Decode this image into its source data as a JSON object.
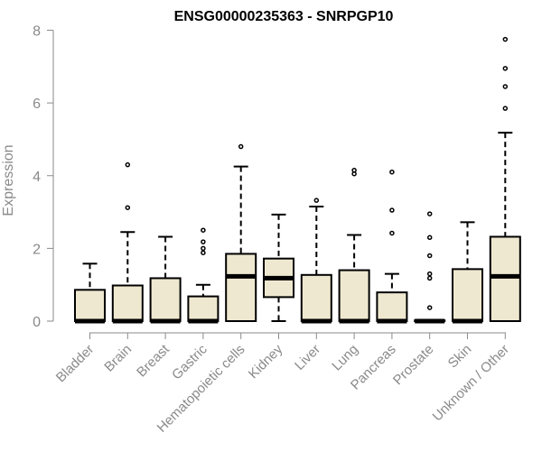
{
  "chart_data": {
    "type": "box",
    "title": "ENSG00000235363 - SNRPGP10",
    "xlabel": "",
    "ylabel": "Expression",
    "ylim": [
      0,
      8
    ],
    "yticks": [
      0,
      2,
      4,
      6,
      8
    ],
    "grid": false,
    "box_fill": "#efe8d0",
    "outline_color": "#000000",
    "axis_color": "#8a8a8a",
    "categories": [
      "Bladder",
      "Brain",
      "Breast",
      "Gastric",
      "Hematopoietic cells",
      "Kidney",
      "Liver",
      "Lung",
      "Pancreas",
      "Prostate",
      "Skin",
      "Unknown / Other"
    ],
    "boxes": [
      {
        "category": "Bladder",
        "min": 0,
        "q1": 0,
        "median": 0,
        "q3": 0.86,
        "max": 1.58,
        "outliers": []
      },
      {
        "category": "Brain",
        "min": 0,
        "q1": 0,
        "median": 0,
        "q3": 0.98,
        "max": 2.45,
        "outliers": [
          3.12,
          4.3
        ]
      },
      {
        "category": "Breast",
        "min": 0,
        "q1": 0,
        "median": 0,
        "q3": 1.18,
        "max": 2.32,
        "outliers": []
      },
      {
        "category": "Gastric",
        "min": 0,
        "q1": 0,
        "median": 0,
        "q3": 0.68,
        "max": 1.0,
        "outliers": [
          1.88,
          2.0,
          2.18,
          2.5
        ]
      },
      {
        "category": "Hematopoietic cells",
        "min": 0,
        "q1": 0,
        "median": 1.23,
        "q3": 1.85,
        "max": 4.25,
        "outliers": [
          4.8
        ]
      },
      {
        "category": "Kidney",
        "min": 0,
        "q1": 0.66,
        "median": 1.18,
        "q3": 1.72,
        "max": 2.93,
        "outliers": []
      },
      {
        "category": "Liver",
        "min": 0,
        "q1": 0,
        "median": 0,
        "q3": 1.27,
        "max": 3.15,
        "outliers": [
          3.32
        ]
      },
      {
        "category": "Lung",
        "min": 0,
        "q1": 0,
        "median": 0,
        "q3": 1.4,
        "max": 2.37,
        "outliers": [
          4.05,
          4.15
        ]
      },
      {
        "category": "Pancreas",
        "min": 0,
        "q1": 0,
        "median": 0,
        "q3": 0.79,
        "max": 1.3,
        "outliers": [
          2.42,
          3.05,
          4.1
        ]
      },
      {
        "category": "Prostate",
        "min": 0,
        "q1": 0,
        "median": 0,
        "q3": 0.02,
        "max": 0.02,
        "outliers": [
          0.37,
          1.18,
          1.3,
          1.8,
          2.3,
          2.95
        ]
      },
      {
        "category": "Skin",
        "min": 0,
        "q1": 0,
        "median": 0,
        "q3": 1.43,
        "max": 2.72,
        "outliers": []
      },
      {
        "category": "Unknown / Other",
        "min": 0,
        "q1": 0,
        "median": 1.23,
        "q3": 2.32,
        "max": 5.18,
        "outliers": [
          5.85,
          6.45,
          6.95,
          7.75
        ]
      }
    ]
  }
}
